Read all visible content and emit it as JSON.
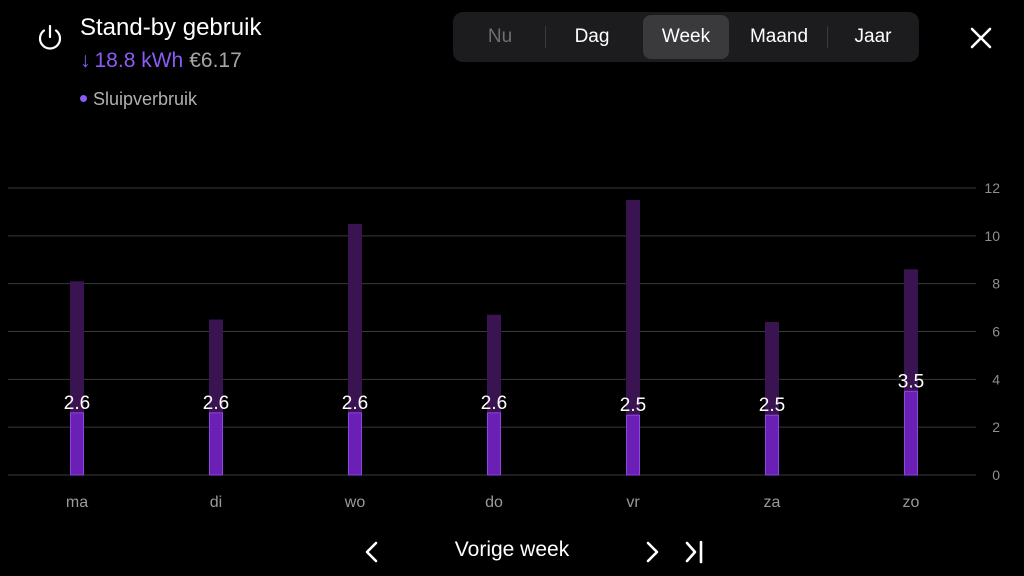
{
  "header": {
    "title": "Stand-by gebruik",
    "energy": "18.8 kWh",
    "cost": "€6.17",
    "legend_label": "Sluipverbruik",
    "icon": "power-icon"
  },
  "period_tabs": [
    {
      "label": "Nu",
      "state": "disabled"
    },
    {
      "label": "Dag",
      "state": "normal"
    },
    {
      "label": "Week",
      "state": "active"
    },
    {
      "label": "Maand",
      "state": "normal"
    },
    {
      "label": "Jaar",
      "state": "normal"
    }
  ],
  "close_icon": "close-icon",
  "navigation": {
    "label": "Vorige week",
    "prev_icon": "chevron-left-icon",
    "next_icon": "chevron-right-icon",
    "last_icon": "skip-to-end-icon"
  },
  "colors": {
    "accent": "#8a5cf5",
    "bar_total": "#3a1450",
    "bar_standby": "#6a1fb5",
    "bar_standby_edge": "#8f45e0",
    "grid": "#3a3a3a"
  },
  "chart_data": {
    "type": "bar",
    "categories": [
      "ma",
      "di",
      "wo",
      "do",
      "vr",
      "za",
      "zo"
    ],
    "series": [
      {
        "name": "",
        "values": [
          8.1,
          6.5,
          10.5,
          6.7,
          11.5,
          6.4,
          8.6
        ]
      },
      {
        "name": "Sluipverbruik",
        "values": [
          2.6,
          2.6,
          2.6,
          2.6,
          2.5,
          2.5,
          3.5
        ]
      }
    ],
    "data_labels": [
      "2.6",
      "2.6",
      "2.6",
      "2.6",
      "2.5",
      "2.5",
      "3.5"
    ],
    "yticks": [
      "0",
      "2",
      "4",
      "6",
      "8",
      "10",
      "12"
    ],
    "ylim": [
      0,
      12
    ],
    "yaxis_position": "right",
    "grid": true,
    "title": "",
    "xlabel": "",
    "ylabel": ""
  }
}
